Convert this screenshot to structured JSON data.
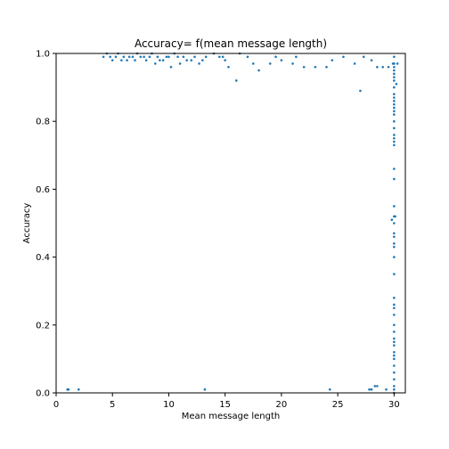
{
  "chart_data": {
    "type": "scatter",
    "title": "Accuracy= f(mean message length)",
    "xlabel": "Mean message length",
    "ylabel": "Accuracy",
    "xlim": [
      0,
      31
    ],
    "ylim": [
      0,
      1.0
    ],
    "x_ticks": [
      0,
      5,
      10,
      15,
      20,
      25,
      30
    ],
    "x_tick_labels": [
      "0",
      "5",
      "10",
      "15",
      "20",
      "25",
      "30"
    ],
    "y_ticks": [
      0.0,
      0.2,
      0.4,
      0.6,
      0.8,
      1.0
    ],
    "y_tick_labels": [
      "0.0",
      "0.2",
      "0.4",
      "0.6",
      "0.8",
      "1.0"
    ],
    "grid": false,
    "marker_color": "#1f77b4",
    "series": [
      {
        "x": [
          4.2,
          4.5,
          4.8,
          5.0,
          5.3,
          5.5,
          5.8,
          6.0,
          6.3,
          6.5,
          6.8,
          7.0,
          7.2,
          7.5,
          7.8,
          8.0,
          8.3,
          8.5,
          8.8,
          9.0,
          9.2,
          9.5,
          9.8,
          10.0,
          10.2,
          10.5,
          10.8,
          11.0,
          11.3,
          11.6,
          12.0,
          12.3,
          12.7,
          13.0,
          13.3,
          14.0,
          14.5,
          14.8,
          15.0,
          15.3,
          16.0,
          16.3,
          17.0,
          17.5,
          18.0,
          19.0,
          19.5,
          20.0,
          21.0,
          21.3,
          22.0,
          23.0,
          24.0,
          24.5,
          25.5,
          26.5,
          27.0,
          27.3,
          28.0,
          28.5,
          29.0,
          29.5,
          30.0,
          30.3
        ],
        "y": [
          0.99,
          1.0,
          0.99,
          0.98,
          0.99,
          1.0,
          0.98,
          0.99,
          0.98,
          0.99,
          0.99,
          0.98,
          1.0,
          0.99,
          0.99,
          0.98,
          0.99,
          1.0,
          0.97,
          0.99,
          0.98,
          0.98,
          0.99,
          0.99,
          0.96,
          1.0,
          0.99,
          0.97,
          0.99,
          0.98,
          0.98,
          0.99,
          0.97,
          0.98,
          0.99,
          1.0,
          0.99,
          0.99,
          0.98,
          0.96,
          0.92,
          1.0,
          0.99,
          0.97,
          0.95,
          0.97,
          0.99,
          0.98,
          0.97,
          0.99,
          0.96,
          0.96,
          0.96,
          0.98,
          0.99,
          0.97,
          0.89,
          0.99,
          0.98,
          0.96,
          0.96,
          0.96,
          0.97,
          0.97
        ]
      },
      {
        "x": [
          30.0,
          30.0,
          30.0,
          30.0,
          30.0,
          30.0,
          30.0,
          30.0,
          30.0,
          30.0,
          30.0,
          30.0,
          30.0,
          30.0,
          30.0,
          30.0,
          30.0,
          30.0,
          30.0,
          30.0,
          30.0,
          30.0,
          30.0,
          30.0,
          30.0,
          30.0,
          30.0,
          30.0,
          30.0,
          30.0,
          30.0,
          30.0,
          30.0,
          30.0,
          30.0,
          30.0,
          30.0,
          30.0,
          30.0,
          30.0,
          30.0,
          30.0,
          30.0,
          30.0,
          30.0,
          30.0,
          30.0,
          30.0,
          30.0,
          30.0,
          29.8,
          29.9,
          30.1,
          30.2
        ],
        "y": [
          0.95,
          0.94,
          0.93,
          0.92,
          0.9,
          0.88,
          0.87,
          0.86,
          0.85,
          0.84,
          0.83,
          0.82,
          0.8,
          0.78,
          0.76,
          0.75,
          0.74,
          0.73,
          0.66,
          0.63,
          0.55,
          0.52,
          0.5,
          0.47,
          0.46,
          0.44,
          0.43,
          0.4,
          0.35,
          0.28,
          0.26,
          0.25,
          0.23,
          0.2,
          0.18,
          0.16,
          0.15,
          0.14,
          0.12,
          0.11,
          0.1,
          0.08,
          0.06,
          0.04,
          0.02,
          0.01,
          0.0,
          0.97,
          0.96,
          0.99,
          0.51,
          0.97,
          0.52,
          0.91
        ]
      },
      {
        "x": [
          1.0,
          1.1,
          2.0,
          13.2,
          24.3,
          27.8,
          28.0,
          28.3,
          28.5,
          29.3
        ],
        "y": [
          0.01,
          0.01,
          0.01,
          0.01,
          0.01,
          0.01,
          0.01,
          0.02,
          0.02,
          0.01
        ]
      }
    ]
  }
}
